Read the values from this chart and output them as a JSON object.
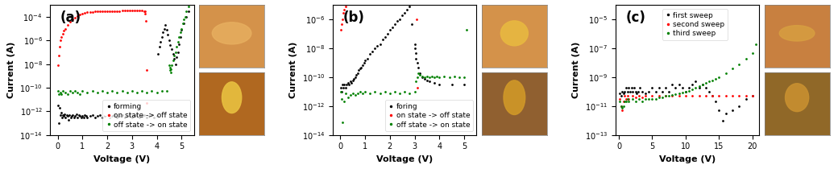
{
  "panels": [
    {
      "label": "(a)",
      "xlabel": "Voltage (V)",
      "ylabel": "Current (A)",
      "xlim": [
        -0.3,
        5.5
      ],
      "ylim_log": [
        -14,
        -3
      ],
      "xticks": [
        0,
        1,
        2,
        3,
        4,
        5
      ],
      "legend_loc": "lower center",
      "legend": [
        {
          "label": "forming",
          "color": "black"
        },
        {
          "label": "on state -> off state",
          "color": "red"
        },
        {
          "label": "off state -> on state",
          "color": "green"
        }
      ],
      "series": [
        {
          "name": "forming",
          "color": "black",
          "x": [
            0.02,
            0.05,
            0.08,
            0.12,
            0.15,
            0.18,
            0.22,
            0.25,
            0.28,
            0.32,
            0.36,
            0.4,
            0.44,
            0.48,
            0.52,
            0.56,
            0.6,
            0.65,
            0.7,
            0.75,
            0.8,
            0.85,
            0.9,
            0.95,
            1.0,
            1.05,
            1.1,
            1.15,
            1.2,
            1.3,
            1.4,
            1.5,
            1.6,
            1.7,
            1.8,
            1.9,
            2.0,
            2.1,
            2.2,
            2.3,
            2.4,
            2.5,
            2.6,
            2.7,
            2.8,
            2.9,
            3.0,
            3.1,
            3.2,
            3.3,
            3.4,
            3.5,
            3.6,
            3.7,
            3.8,
            3.9,
            4.0,
            4.05,
            4.1,
            4.15,
            4.2,
            4.25,
            4.3,
            4.35,
            4.4,
            4.45,
            4.5,
            4.55,
            4.6,
            4.65,
            4.7,
            4.75,
            4.8,
            4.85,
            4.9,
            4.95,
            5.0,
            5.1,
            5.2,
            5.3
          ],
          "y": [
            3e-12,
            1e-13,
            2e-12,
            5e-13,
            8e-13,
            3e-13,
            5e-13,
            4e-13,
            6e-13,
            3e-13,
            5e-13,
            4e-13,
            2e-13,
            5e-13,
            3e-13,
            4e-13,
            5e-13,
            3e-13,
            4e-13,
            6e-13,
            3e-13,
            5e-13,
            4e-13,
            3e-13,
            4e-13,
            3e-13,
            5e-13,
            4e-13,
            3e-13,
            4e-13,
            5e-13,
            3e-13,
            4e-13,
            5e-13,
            3e-13,
            4e-13,
            5e-13,
            3e-13,
            4e-13,
            5e-13,
            3e-13,
            4e-13,
            5e-13,
            3e-13,
            4e-13,
            5e-13,
            3e-13,
            4e-13,
            5e-13,
            3e-13,
            4e-13,
            5e-13,
            3e-13,
            4e-13,
            5e-13,
            3e-13,
            4e-13,
            8e-08,
            3e-07,
            8e-07,
            2e-06,
            5e-06,
            1e-05,
            2e-05,
            8e-06,
            3e-06,
            1e-06,
            4e-07,
            2e-07,
            8e-08,
            3e-08,
            1e-08,
            4e-08,
            1e-07,
            5e-07,
            2e-06,
            8e-06,
            3e-05,
            0.0001,
            0.0003
          ]
        },
        {
          "name": "on state -> off state",
          "color": "red",
          "x": [
            0.02,
            0.05,
            0.08,
            0.12,
            0.15,
            0.2,
            0.25,
            0.3,
            0.4,
            0.5,
            0.6,
            0.7,
            0.8,
            0.9,
            1.0,
            1.1,
            1.2,
            1.3,
            1.4,
            1.5,
            1.6,
            1.7,
            1.8,
            1.9,
            2.0,
            2.1,
            2.2,
            2.3,
            2.4,
            2.5,
            2.6,
            2.7,
            2.8,
            2.9,
            3.0,
            3.1,
            3.2,
            3.3,
            3.4,
            3.5,
            3.52,
            3.54,
            3.56,
            3.58,
            3.6
          ],
          "y": [
            8e-09,
            5e-08,
            3e-07,
            1e-06,
            2e-06,
            4e-06,
            7e-06,
            1e-05,
            2e-05,
            4e-05,
            6e-05,
            9e-05,
            0.00012,
            0.00016,
            0.0002,
            0.00023,
            0.00025,
            0.00027,
            0.00028,
            0.00029,
            0.0003,
            0.00031,
            0.000315,
            0.00032,
            0.000325,
            0.000325,
            0.00033,
            0.00033,
            0.00033,
            0.00033,
            0.000335,
            0.000335,
            0.000335,
            0.00034,
            0.00034,
            0.00034,
            0.00034,
            0.000335,
            0.000335,
            0.00033,
            0.0003,
            0.0002,
            5e-05,
            3e-09,
            5e-12
          ]
        },
        {
          "name": "off state -> on state",
          "color": "green",
          "x": [
            0.02,
            0.05,
            0.1,
            0.15,
            0.2,
            0.3,
            0.4,
            0.5,
            0.6,
            0.7,
            0.8,
            0.9,
            1.0,
            1.2,
            1.4,
            1.6,
            1.8,
            2.0,
            2.2,
            2.4,
            2.6,
            2.8,
            3.0,
            3.2,
            3.4,
            3.6,
            3.8,
            4.0,
            4.2,
            4.4,
            4.5,
            4.52,
            4.54,
            4.56,
            4.58,
            4.6,
            4.65,
            4.7,
            4.75,
            4.8,
            4.85,
            4.9,
            4.95,
            5.0,
            5.05,
            5.1,
            5.15,
            5.2,
            5.3
          ],
          "y": [
            5e-11,
            3e-11,
            4e-11,
            3e-11,
            5e-11,
            4e-11,
            3e-11,
            5e-11,
            4e-11,
            5e-11,
            4e-11,
            3e-11,
            5e-11,
            4e-11,
            5e-11,
            4e-11,
            5e-11,
            4e-11,
            5e-11,
            4e-11,
            5e-11,
            4e-11,
            5e-11,
            4e-11,
            5e-11,
            4e-11,
            5e-11,
            4e-11,
            5e-11,
            5e-11,
            8e-09,
            5e-09,
            3e-09,
            2e-09,
            4e-09,
            8e-09,
            2e-08,
            5e-08,
            1e-07,
            3e-07,
            8e-07,
            2e-06,
            5e-06,
            1e-05,
            3e-05,
            6e-05,
            0.0001,
            0.0003,
            0.0008
          ]
        }
      ]
    },
    {
      "label": "(b)",
      "xlabel": "Voltage (V)",
      "ylabel": "Current (A)",
      "xlim": [
        -0.3,
        5.5
      ],
      "ylim_log": [
        -14,
        -5
      ],
      "xticks": [
        0,
        1,
        2,
        3,
        4,
        5
      ],
      "legend_loc": "lower center",
      "legend": [
        {
          "label": "foring",
          "color": "black"
        },
        {
          "label": "on state -> off state",
          "color": "red"
        },
        {
          "label": "off state -> on state",
          "color": "green"
        }
      ],
      "series": [
        {
          "name": "foring",
          "color": "black",
          "x": [
            0.02,
            0.05,
            0.08,
            0.12,
            0.15,
            0.2,
            0.25,
            0.3,
            0.35,
            0.4,
            0.45,
            0.5,
            0.55,
            0.6,
            0.65,
            0.7,
            0.75,
            0.8,
            0.85,
            0.9,
            0.95,
            1.0,
            1.1,
            1.2,
            1.3,
            1.4,
            1.5,
            1.6,
            1.7,
            1.8,
            1.9,
            2.0,
            2.1,
            2.2,
            2.3,
            2.4,
            2.5,
            2.6,
            2.7,
            2.8,
            2.9,
            3.0,
            3.02,
            3.04,
            3.06,
            3.1,
            3.15,
            3.2,
            3.3,
            3.4,
            3.5,
            3.6,
            3.8,
            4.0,
            4.5,
            5.0
          ],
          "y": [
            2e-11,
            1e-11,
            3e-11,
            2e-11,
            3e-11,
            2e-11,
            3e-11,
            4e-11,
            3e-11,
            5e-11,
            4e-11,
            6e-11,
            8e-11,
            1e-10,
            1.5e-10,
            2e-10,
            3e-10,
            4e-10,
            5e-10,
            7e-10,
            1e-09,
            1.5e-09,
            2e-09,
            4e-09,
            6e-09,
            1e-08,
            1.5e-08,
            2e-08,
            4e-08,
            6e-08,
            1e-07,
            2e-07,
            3e-07,
            5e-07,
            8e-07,
            1e-06,
            2e-06,
            3e-06,
            5e-06,
            8e-06,
            5e-07,
            2e-08,
            1e-08,
            5e-09,
            2e-09,
            1e-09,
            5e-10,
            2e-10,
            1e-10,
            8e-11,
            6e-11,
            5e-11,
            4e-11,
            3e-11,
            3e-11,
            3e-11
          ]
        },
        {
          "name": "on state -> off state",
          "color": "red",
          "x": [
            0.02,
            0.05,
            0.08,
            0.12,
            0.15,
            0.2,
            0.25,
            0.3,
            0.4,
            0.5,
            0.6,
            0.7,
            0.8,
            0.9,
            1.0,
            1.1,
            1.2,
            1.3,
            1.4,
            1.5,
            1.6,
            1.7,
            1.8,
            1.9,
            2.0,
            2.1,
            2.2,
            2.3,
            2.4,
            2.5,
            2.6,
            2.7,
            2.8,
            2.9,
            3.0,
            3.02,
            3.04,
            3.06,
            3.08,
            3.1
          ],
          "y": [
            2e-07,
            5e-07,
            1e-06,
            3e-06,
            5e-06,
            8e-06,
            1.2e-05,
            2e-05,
            4e-05,
            7e-05,
            0.0001,
            0.00015,
            0.0002,
            0.00025,
            0.0003,
            0.0004,
            0.0005,
            0.0006,
            0.0007,
            0.0008,
            0.00085,
            0.0009,
            0.00092,
            0.00095,
            0.00095,
            0.00095,
            0.00095,
            0.00095,
            0.00095,
            0.00095,
            0.00095,
            0.00095,
            0.00095,
            0.00095,
            0.00095,
            0.0008,
            0.0003,
            5e-05,
            1e-06,
            2e-11
          ]
        },
        {
          "name": "off state -> on state",
          "color": "green",
          "x": [
            0.02,
            0.05,
            0.1,
            0.15,
            0.2,
            0.3,
            0.4,
            0.5,
            0.6,
            0.7,
            0.8,
            0.9,
            1.0,
            1.2,
            1.4,
            1.6,
            1.8,
            2.0,
            2.2,
            2.4,
            2.6,
            2.8,
            3.0,
            3.05,
            3.1,
            3.15,
            3.2,
            3.3,
            3.4,
            3.5,
            3.6,
            3.7,
            3.8,
            3.9,
            4.0,
            4.2,
            4.4,
            4.6,
            4.8,
            5.0,
            5.1
          ],
          "y": [
            1e-11,
            3e-12,
            8e-14,
            2e-12,
            8e-12,
            4e-12,
            6e-12,
            8e-12,
            6e-12,
            8e-12,
            1e-11,
            8e-12,
            1e-11,
            8e-12,
            1e-11,
            8e-12,
            1e-11,
            8e-12,
            1e-11,
            8e-12,
            1e-11,
            8e-12,
            1e-11,
            5e-11,
            1e-10,
            2e-10,
            1.5e-10,
            1.2e-10,
            1e-10,
            1.2e-10,
            1e-10,
            1.2e-10,
            1e-10,
            1.2e-10,
            1e-10,
            1.2e-10,
            1e-10,
            1.2e-10,
            1e-10,
            1e-10,
            2e-07
          ]
        }
      ]
    },
    {
      "label": "(c)",
      "xlabel": "Voltage (V)",
      "ylabel": "Current (A)",
      "xlim": [
        -0.5,
        21
      ],
      "ylim_log": [
        -13,
        -4
      ],
      "xticks": [
        0,
        5,
        10,
        15,
        20
      ],
      "legend_loc": "upper left",
      "legend": [
        {
          "label": "first sweep",
          "color": "black"
        },
        {
          "label": "second sweep",
          "color": "red"
        },
        {
          "label": "third sweep",
          "color": "green"
        }
      ],
      "series": [
        {
          "name": "first sweep",
          "color": "black",
          "x": [
            0.1,
            0.3,
            0.5,
            0.7,
            0.9,
            1.1,
            1.3,
            1.5,
            1.7,
            1.9,
            2.1,
            2.3,
            2.5,
            2.7,
            2.9,
            3.1,
            3.5,
            4.0,
            4.5,
            5.0,
            5.5,
            6.0,
            6.5,
            7.0,
            7.5,
            8.0,
            8.5,
            9.0,
            9.5,
            10.0,
            10.5,
            11.0,
            11.5,
            12.0,
            12.5,
            13.0,
            13.5,
            14.0,
            14.5,
            15.0,
            15.5,
            16.0,
            17.0,
            18.0,
            19.0,
            20.0
          ],
          "y": [
            8e-11,
            5e-11,
            1e-10,
            8e-11,
            1e-10,
            2e-10,
            1e-10,
            2e-10,
            1e-10,
            2e-10,
            1e-10,
            2e-10,
            1e-10,
            8e-11,
            1e-10,
            2e-10,
            1e-10,
            8e-11,
            1e-10,
            2e-10,
            1e-10,
            2e-10,
            1e-10,
            2e-10,
            1e-10,
            3e-10,
            2e-10,
            3e-10,
            2e-10,
            1e-10,
            2e-10,
            3e-10,
            5e-10,
            2e-10,
            3e-10,
            2e-10,
            1e-10,
            5e-11,
            2e-11,
            5e-12,
            1e-12,
            3e-12,
            5e-12,
            1e-11,
            3e-11,
            5e-11
          ]
        },
        {
          "name": "second sweep",
          "color": "red",
          "x": [
            0.1,
            0.3,
            0.5,
            0.7,
            0.9,
            1.1,
            1.3,
            1.5,
            2.0,
            2.5,
            3.0,
            3.5,
            4.0,
            5.0,
            6.0,
            7.0,
            8.0,
            9.0,
            10.0,
            11.0,
            12.0,
            13.0,
            14.0,
            15.0,
            16.0,
            17.0,
            18.0,
            19.0,
            20.0
          ],
          "y": [
            3e-11,
            1e-11,
            5e-12,
            2e-11,
            5e-11,
            3e-11,
            5e-11,
            3e-11,
            5e-11,
            4e-11,
            5e-11,
            4e-11,
            5e-11,
            5e-11,
            5e-11,
            5e-11,
            5e-11,
            5e-11,
            5e-11,
            5e-11,
            5e-11,
            5e-11,
            5e-11,
            5e-11,
            5e-11,
            5e-11,
            5e-11,
            5e-11,
            5e-11
          ]
        },
        {
          "name": "third sweep",
          "color": "green",
          "x": [
            0.1,
            0.3,
            0.5,
            0.7,
            0.9,
            1.1,
            1.3,
            1.5,
            2.0,
            2.5,
            3.0,
            3.5,
            4.0,
            4.5,
            5.0,
            5.5,
            6.0,
            6.5,
            7.0,
            7.5,
            8.0,
            8.5,
            9.0,
            9.5,
            10.0,
            10.5,
            11.0,
            11.5,
            12.0,
            12.5,
            13.0,
            13.5,
            14.0,
            14.5,
            15.0,
            16.0,
            17.0,
            18.0,
            19.0,
            20.0,
            20.5
          ],
          "y": [
            2e-11,
            1e-11,
            8e-12,
            1e-11,
            2e-11,
            2e-11,
            3e-11,
            2e-11,
            3e-11,
            2e-11,
            3e-11,
            2e-11,
            3e-11,
            3e-11,
            3e-11,
            3e-11,
            4e-11,
            4e-11,
            5e-11,
            5e-11,
            6e-11,
            7e-11,
            8e-11,
            9e-11,
            1e-10,
            1.2e-10,
            1.5e-10,
            2e-10,
            2.5e-10,
            3e-10,
            4e-10,
            5e-10,
            6e-10,
            8e-10,
            1e-09,
            2e-09,
            4e-09,
            8e-09,
            2e-08,
            5e-08,
            2e-07
          ]
        }
      ]
    }
  ],
  "bg_color": "white",
  "panel_label_fontsize": 12,
  "axis_label_fontsize": 8,
  "tick_fontsize": 7,
  "legend_fontsize": 6.5,
  "marker_size": 2.0,
  "inset_top_colors": [
    "#d4924a",
    "#d4924a",
    "#c88040"
  ],
  "inset_bot_colors": [
    "#b06820",
    "#906030",
    "#906828"
  ]
}
